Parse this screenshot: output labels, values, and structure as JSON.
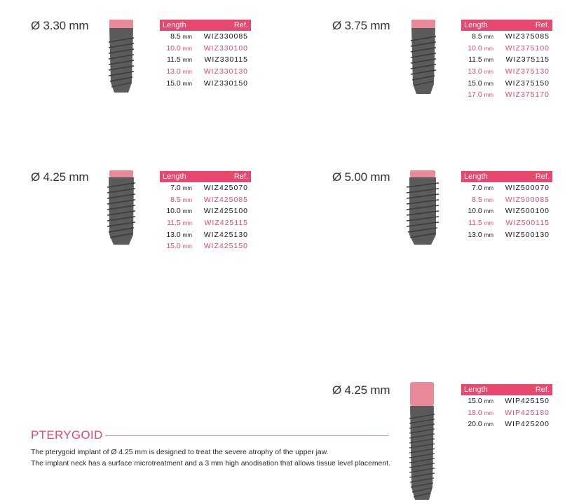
{
  "colors": {
    "accent": "#e8476e",
    "text": "#1a1a1a",
    "implant_body": "#5a5a5a",
    "implant_neck": "#e88a98"
  },
  "table_header": {
    "length": "Length",
    "ref": "Ref."
  },
  "unit": "mm",
  "groups": [
    {
      "diameter": "Ø 3.30 mm",
      "rows": [
        {
          "length": "8.5",
          "ref": "WIZ330085",
          "highlight": false
        },
        {
          "length": "10.0",
          "ref": "WIZ330100",
          "highlight": true
        },
        {
          "length": "11.5",
          "ref": "WIZ330115",
          "highlight": false
        },
        {
          "length": "13.0",
          "ref": "WIZ330130",
          "highlight": true
        },
        {
          "length": "15.0",
          "ref": "WIZ330150",
          "highlight": false
        }
      ]
    },
    {
      "diameter": "Ø 3.75 mm",
      "rows": [
        {
          "length": "8.5",
          "ref": "WIZ375085",
          "highlight": false
        },
        {
          "length": "10.0",
          "ref": "WIZ375100",
          "highlight": true
        },
        {
          "length": "11.5",
          "ref": "WIZ375115",
          "highlight": false
        },
        {
          "length": "13.0",
          "ref": "WIZ375130",
          "highlight": true
        },
        {
          "length": "15.0",
          "ref": "WIZ375150",
          "highlight": false
        },
        {
          "length": "17.0",
          "ref": "WIZ375170",
          "highlight": true
        }
      ]
    },
    {
      "diameter": "Ø 4.25 mm",
      "rows": [
        {
          "length": "7.0",
          "ref": "WIZ425070",
          "highlight": false
        },
        {
          "length": "8.5",
          "ref": "WIZ425085",
          "highlight": true
        },
        {
          "length": "10.0",
          "ref": "WIZ425100",
          "highlight": false
        },
        {
          "length": "11.5",
          "ref": "WIZ425115",
          "highlight": true
        },
        {
          "length": "13.0",
          "ref": "WIZ425130",
          "highlight": false
        },
        {
          "length": "15.0",
          "ref": "WIZ425150",
          "highlight": true
        }
      ]
    },
    {
      "diameter": "Ø 5.00 mm",
      "rows": [
        {
          "length": "7.0",
          "ref": "WIZ500070",
          "highlight": false
        },
        {
          "length": "8.5",
          "ref": "WIZ500085",
          "highlight": true
        },
        {
          "length": "10.0",
          "ref": "WIZ500100",
          "highlight": false
        },
        {
          "length": "11.5",
          "ref": "WIZ500115",
          "highlight": true
        },
        {
          "length": "13.0",
          "ref": "WIZ500130",
          "highlight": false
        }
      ]
    },
    {
      "diameter": "Ø 4.25 mm",
      "rows": [
        {
          "length": "15.0",
          "ref": "WIP425150",
          "highlight": false
        },
        {
          "length": "18.0",
          "ref": "WIP425180",
          "highlight": true
        },
        {
          "length": "20.0",
          "ref": "WIP425200",
          "highlight": false
        }
      ]
    }
  ],
  "pterygoid": {
    "title": "PTERYGOID",
    "lines": [
      "The pterygoid implant of Ø 4.25 mm is designed to treat the severe atrophy of the upper jaw.",
      "The implant neck has a surface microtreatment and a 3 mm high anodisation that allows tissue level placement."
    ]
  }
}
